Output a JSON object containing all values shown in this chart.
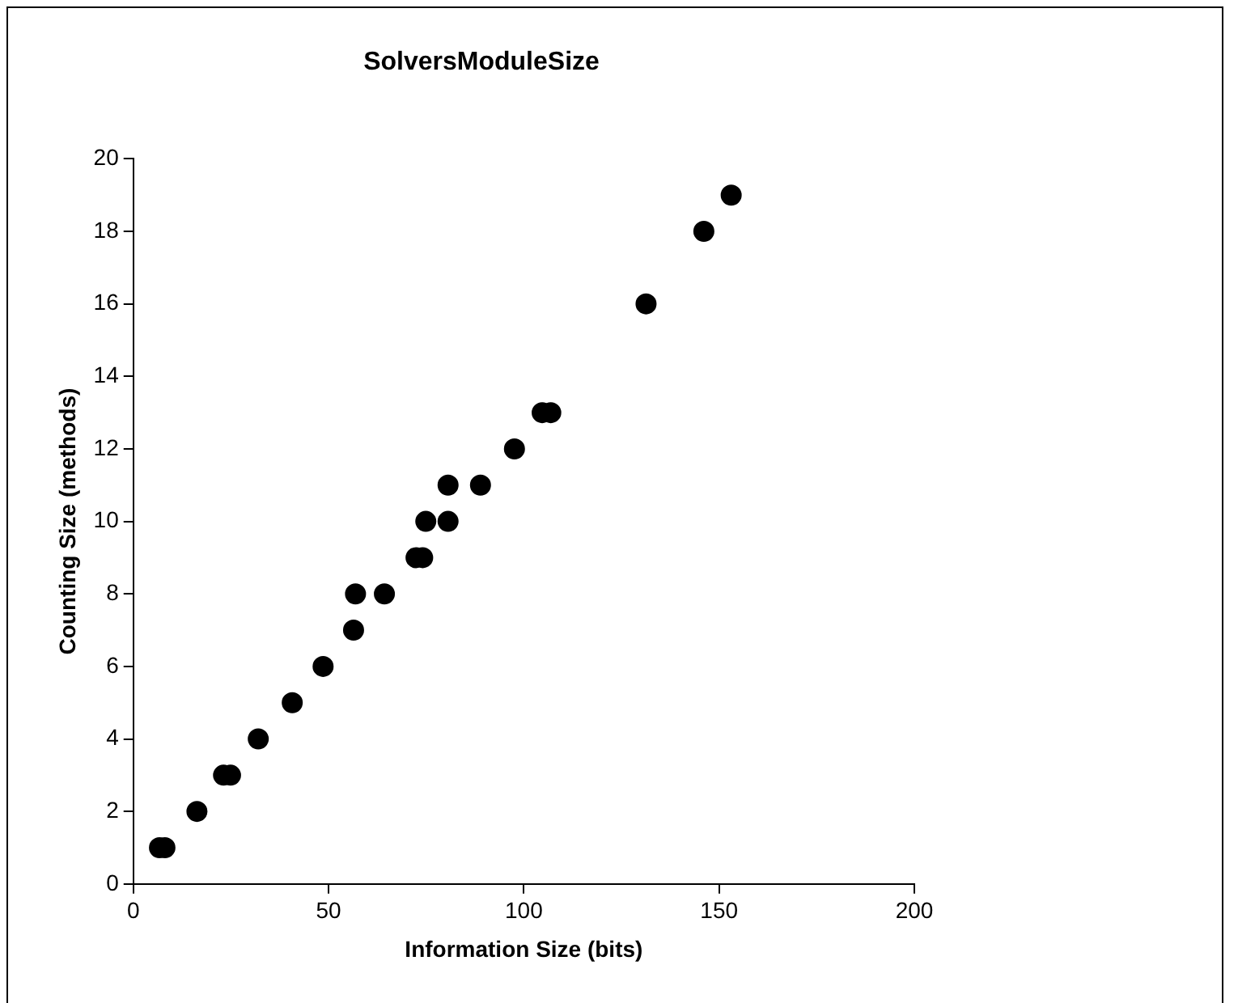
{
  "chart_data": {
    "type": "scatter",
    "title": "SolversModuleSize",
    "xlabel": "Information Size (bits)",
    "ylabel": "Counting Size (methods)",
    "x": [
      6.7,
      8.1,
      16.3,
      23.1,
      24.9,
      32,
      40.7,
      48.6,
      56.4,
      56.9,
      64.3,
      72.4,
      74.1,
      74.9,
      80.6,
      80.6,
      88.9,
      97.6,
      104.7,
      106.9,
      131.3,
      146.1,
      153.1
    ],
    "values": [
      1,
      1,
      2,
      3,
      3,
      4,
      5,
      6,
      7,
      8,
      8,
      9,
      9,
      10,
      10,
      11,
      11,
      12,
      13,
      13,
      16,
      18,
      19
    ],
    "color": "#000000",
    "marker": "circle",
    "grid": false,
    "legend": false,
    "xlim": [
      0,
      200
    ],
    "xticks": [
      0,
      50,
      100,
      150,
      200
    ],
    "ylim": [
      0,
      20
    ],
    "yticks": [
      0,
      2,
      4,
      6,
      8,
      10,
      12,
      14,
      16,
      18,
      20
    ]
  }
}
